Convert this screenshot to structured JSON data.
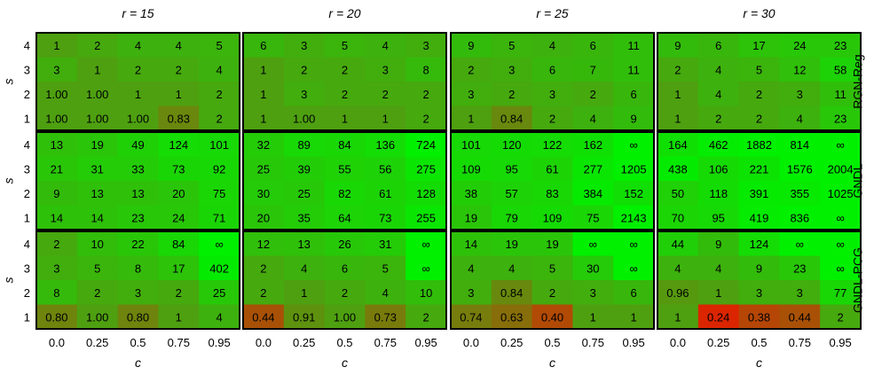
{
  "chart_data": {
    "type": "heatmap",
    "col_titles": [
      "r = 15",
      "r = 20",
      "r = 25",
      "r = 30"
    ],
    "row_titles": [
      "RGN-Reg",
      "GNDL",
      "GNDL-PCG"
    ],
    "xlabel": "c",
    "ylabel": "s",
    "x": [
      "0.0",
      "0.25",
      "0.5",
      "0.75",
      "0.95"
    ],
    "y": [
      "1",
      "2",
      "3",
      "4"
    ],
    "color_scale": {
      "low": "#e02000",
      "mid": "#4ea010",
      "high": "#00f000"
    },
    "panels": [
      {
        "method": "RGN-Reg",
        "r": "r = 15",
        "rows": [
          [
            "1",
            "2",
            "4",
            "4",
            "5"
          ],
          [
            "3",
            "1",
            "2",
            "2",
            "4"
          ],
          [
            "1.00",
            "1.00",
            "1",
            "1",
            "2"
          ],
          [
            "1.00",
            "1.00",
            "1.00",
            "0.83",
            "2"
          ]
        ]
      },
      {
        "method": "RGN-Reg",
        "r": "r = 20",
        "rows": [
          [
            "6",
            "3",
            "5",
            "4",
            "3"
          ],
          [
            "1",
            "2",
            "2",
            "3",
            "8"
          ],
          [
            "1",
            "3",
            "2",
            "2",
            "2"
          ],
          [
            "1",
            "1.00",
            "1",
            "1",
            "2"
          ]
        ]
      },
      {
        "method": "RGN-Reg",
        "r": "r = 25",
        "rows": [
          [
            "9",
            "5",
            "4",
            "6",
            "11"
          ],
          [
            "2",
            "3",
            "6",
            "7",
            "11"
          ],
          [
            "3",
            "2",
            "3",
            "2",
            "6"
          ],
          [
            "1",
            "0.84",
            "2",
            "4",
            "9"
          ]
        ]
      },
      {
        "method": "RGN-Reg",
        "r": "r = 30",
        "rows": [
          [
            "9",
            "6",
            "17",
            "24",
            "23"
          ],
          [
            "2",
            "4",
            "5",
            "12",
            "58"
          ],
          [
            "1",
            "4",
            "2",
            "3",
            "11"
          ],
          [
            "1",
            "2",
            "2",
            "4",
            "23"
          ]
        ]
      },
      {
        "method": "GNDL",
        "r": "r = 15",
        "rows": [
          [
            "13",
            "19",
            "49",
            "124",
            "101"
          ],
          [
            "21",
            "31",
            "33",
            "73",
            "92"
          ],
          [
            "9",
            "13",
            "13",
            "20",
            "75"
          ],
          [
            "14",
            "14",
            "23",
            "24",
            "71"
          ]
        ]
      },
      {
        "method": "GNDL",
        "r": "r = 20",
        "rows": [
          [
            "32",
            "89",
            "84",
            "136",
            "724"
          ],
          [
            "25",
            "39",
            "55",
            "56",
            "275"
          ],
          [
            "30",
            "25",
            "82",
            "61",
            "128"
          ],
          [
            "20",
            "35",
            "64",
            "73",
            "255"
          ]
        ]
      },
      {
        "method": "GNDL",
        "r": "r = 25",
        "rows": [
          [
            "101",
            "120",
            "122",
            "162",
            "∞"
          ],
          [
            "109",
            "95",
            "61",
            "277",
            "1205"
          ],
          [
            "38",
            "57",
            "83",
            "384",
            "152"
          ],
          [
            "19",
            "79",
            "109",
            "75",
            "2143"
          ]
        ]
      },
      {
        "method": "GNDL",
        "r": "r = 30",
        "rows": [
          [
            "164",
            "462",
            "1882",
            "814",
            "∞"
          ],
          [
            "438",
            "106",
            "221",
            "1576",
            "2004"
          ],
          [
            "50",
            "118",
            "391",
            "355",
            "1025"
          ],
          [
            "70",
            "95",
            "419",
            "836",
            "∞"
          ]
        ]
      },
      {
        "method": "GNDL-PCG",
        "r": "r = 15",
        "rows": [
          [
            "2",
            "10",
            "22",
            "84",
            "∞"
          ],
          [
            "3",
            "5",
            "8",
            "17",
            "402"
          ],
          [
            "8",
            "2",
            "3",
            "2",
            "25"
          ],
          [
            "0.80",
            "1.00",
            "0.80",
            "1",
            "4"
          ]
        ]
      },
      {
        "method": "GNDL-PCG",
        "r": "r = 20",
        "rows": [
          [
            "12",
            "13",
            "26",
            "31",
            "∞"
          ],
          [
            "2",
            "4",
            "6",
            "5",
            "∞"
          ],
          [
            "2",
            "1",
            "2",
            "4",
            "10"
          ],
          [
            "0.44",
            "0.91",
            "1.00",
            "0.73",
            "2"
          ]
        ]
      },
      {
        "method": "GNDL-PCG",
        "r": "r = 25",
        "rows": [
          [
            "14",
            "19",
            "19",
            "∞",
            "∞"
          ],
          [
            "4",
            "4",
            "5",
            "30",
            "∞"
          ],
          [
            "3",
            "0.84",
            "2",
            "3",
            "6"
          ],
          [
            "0.74",
            "0.63",
            "0.40",
            "1",
            "1"
          ]
        ]
      },
      {
        "method": "GNDL-PCG",
        "r": "r = 30",
        "rows": [
          [
            "44",
            "9",
            "124",
            "∞",
            "∞"
          ],
          [
            "4",
            "4",
            "9",
            "23",
            "∞"
          ],
          [
            "0.96",
            "1",
            "3",
            "3",
            "77"
          ],
          [
            "1",
            "0.24",
            "0.38",
            "0.44",
            "2"
          ]
        ]
      }
    ]
  }
}
